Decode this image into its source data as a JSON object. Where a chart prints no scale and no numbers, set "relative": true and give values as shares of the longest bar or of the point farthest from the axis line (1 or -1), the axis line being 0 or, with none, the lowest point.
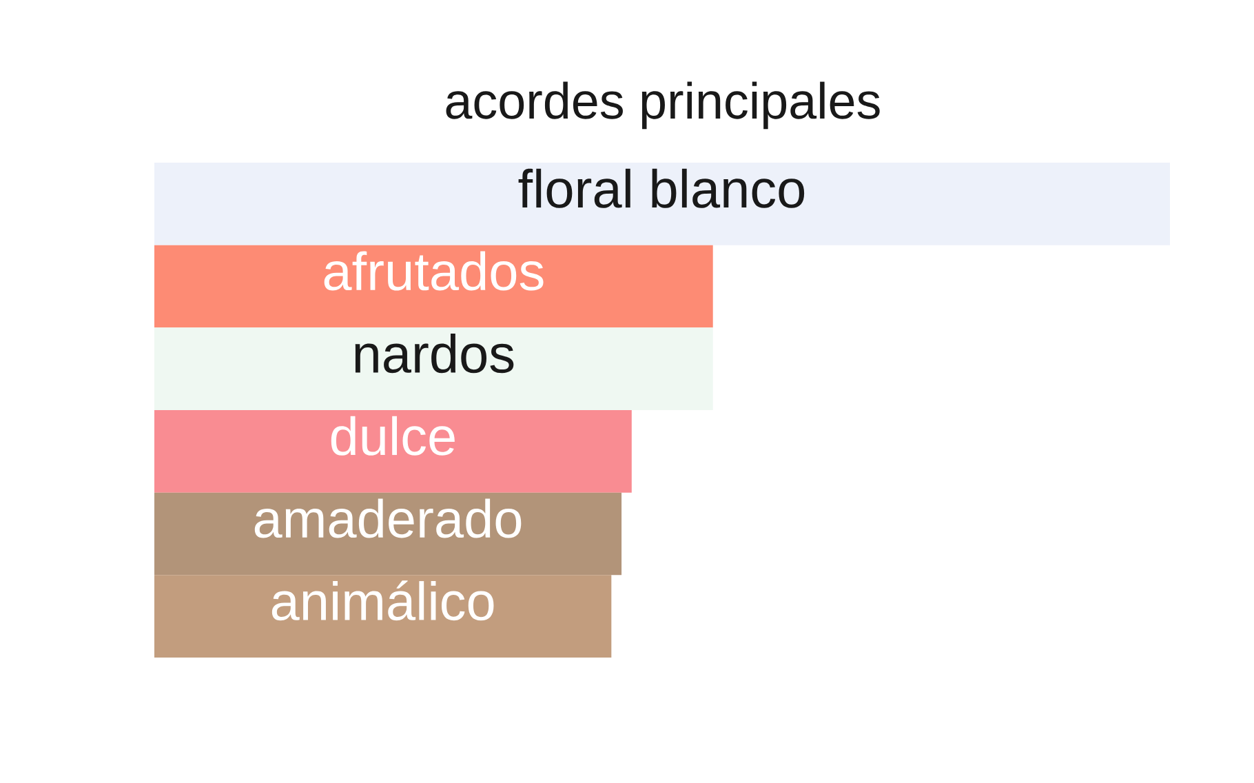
{
  "chart_data": {
    "type": "bar",
    "orientation": "horizontal",
    "relative": true,
    "title": "acordes principales",
    "categories": [
      "floral blanco",
      "afrutados",
      "nardos",
      "dulce",
      "amaderado",
      "animálico"
    ],
    "values": [
      1,
      0.55,
      0.55,
      0.47,
      0.46,
      0.45
    ],
    "colors": [
      "#edf1fa",
      "#fd8b74",
      "#eff8f2",
      "#f98c92",
      "#b29479",
      "#c29d7e"
    ]
  }
}
